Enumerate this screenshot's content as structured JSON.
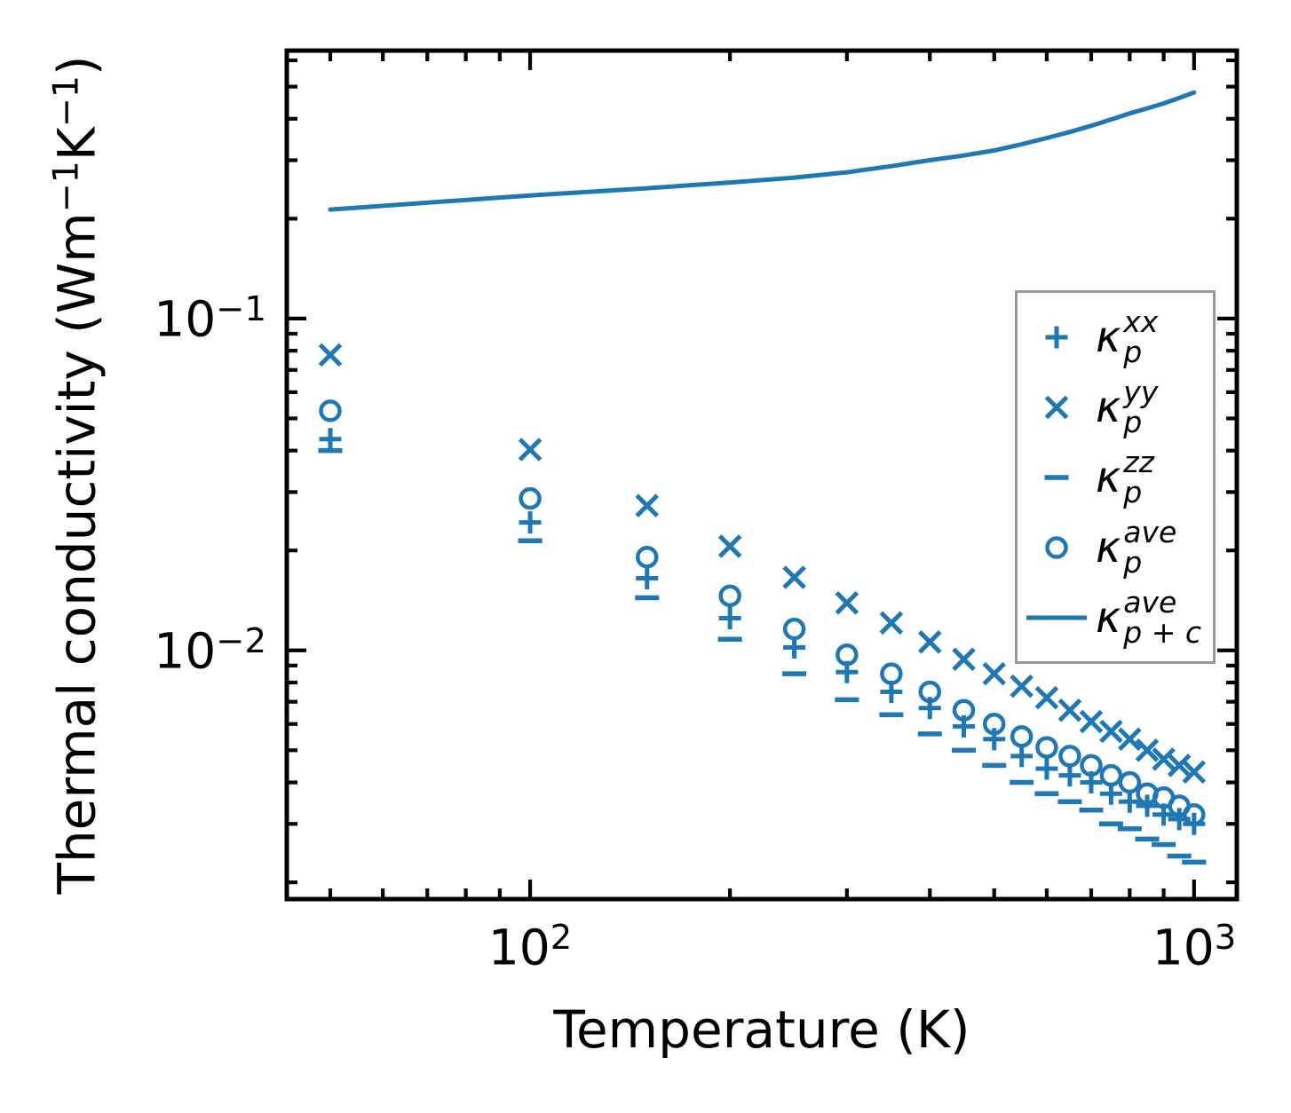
{
  "figure": {
    "background": "#ffffff",
    "accent_color": "#1f77b4",
    "xlabel": "Temperature (K)",
    "ylabel": {
      "prefix": "Thermal conductivity (Wm",
      "sup1": "−1",
      "mid": "K",
      "sup2": "−1",
      "suffix": ")"
    },
    "xtick_labels": [
      {
        "base": "10",
        "exp": "2"
      },
      {
        "base": "10",
        "exp": "3"
      }
    ],
    "ytick_labels": [
      {
        "base": "10",
        "exp": "−1"
      },
      {
        "base": "10",
        "exp": "−2"
      }
    ]
  },
  "legend": {
    "border_color": "#999999",
    "entries": [
      {
        "marker": "plus",
        "symbol": "κ",
        "sup": "xx",
        "sub": "p"
      },
      {
        "marker": "cross",
        "symbol": "κ",
        "sup": "yy",
        "sub": "p"
      },
      {
        "marker": "dash",
        "symbol": "κ",
        "sup": "zz",
        "sub": "p"
      },
      {
        "marker": "circle",
        "symbol": "κ",
        "sup": "ave",
        "sub": "p"
      },
      {
        "marker": "line",
        "symbol": "κ",
        "sup": "ave",
        "sub": "p + c"
      }
    ]
  },
  "chart_data": {
    "type": "scatter+line",
    "title": "",
    "xlabel": "Temperature (K)",
    "ylabel": "Thermal conductivity (Wm^-1 K^-1)",
    "x_scale": "log",
    "y_scale": "log",
    "xlim": [
      43,
      1160
    ],
    "ylim": [
      0.00178,
      0.642
    ],
    "x_major_ticks": [
      100,
      1000
    ],
    "y_major_ticks": [
      0.1,
      0.01
    ],
    "grid": false,
    "legend_position": "upper-right-inside",
    "color": "#1f77b4",
    "temperatures": [
      50,
      100,
      150,
      200,
      250,
      300,
      350,
      400,
      450,
      500,
      550,
      600,
      650,
      700,
      750,
      800,
      850,
      900,
      950,
      1000
    ],
    "series": [
      {
        "name": "kappa_p_xx",
        "marker": "plus",
        "values": [
          0.0433,
          0.0243,
          0.0165,
          0.0125,
          0.0102,
          0.0086,
          0.0075,
          0.0067,
          0.0059,
          0.0054,
          0.0048,
          0.0044,
          0.0042,
          0.004,
          0.0037,
          0.0035,
          0.0034,
          0.0032,
          0.0031,
          0.003
        ]
      },
      {
        "name": "kappa_p_yy",
        "marker": "cross",
        "values": [
          0.0777,
          0.0403,
          0.0273,
          0.0206,
          0.0166,
          0.0139,
          0.0121,
          0.0106,
          0.0094,
          0.0085,
          0.0078,
          0.0072,
          0.0066,
          0.0061,
          0.0057,
          0.0054,
          0.005,
          0.0047,
          0.0045,
          0.0043
        ]
      },
      {
        "name": "kappa_p_zz",
        "marker": "dash",
        "values": [
          0.04,
          0.0214,
          0.0144,
          0.0108,
          0.0085,
          0.0071,
          0.0064,
          0.0056,
          0.005,
          0.0045,
          0.004,
          0.0037,
          0.0035,
          0.0033,
          0.003,
          0.0029,
          0.0027,
          0.0026,
          0.0024,
          0.0023
        ]
      },
      {
        "name": "kappa_p_ave",
        "marker": "circle",
        "values": [
          0.0527,
          0.0287,
          0.0191,
          0.0146,
          0.0116,
          0.0097,
          0.0085,
          0.0075,
          0.0066,
          0.006,
          0.0055,
          0.0051,
          0.0048,
          0.0045,
          0.0042,
          0.004,
          0.0037,
          0.0036,
          0.0034,
          0.0032
        ]
      },
      {
        "name": "kappa_p_plus_c_ave",
        "marker": "line",
        "values": [
          0.213,
          0.235,
          0.247,
          0.257,
          0.266,
          0.276,
          0.288,
          0.3,
          0.31,
          0.321,
          0.335,
          0.35,
          0.365,
          0.381,
          0.398,
          0.415,
          0.43,
          0.445,
          0.462,
          0.48
        ]
      }
    ]
  }
}
